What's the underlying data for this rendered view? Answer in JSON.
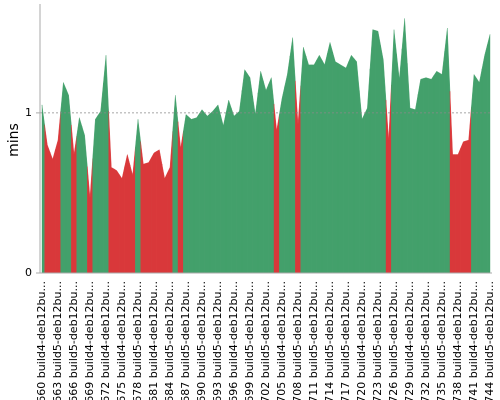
{
  "chart_data": {
    "type": "area",
    "y_label": "mins",
    "ylim": [
      0,
      1.68
    ],
    "yticks": [
      0,
      1
    ],
    "grid": true,
    "categories": [
      "#660 build4-deb12bu...",
      null,
      null,
      "#663 build5-deb12bu...",
      null,
      null,
      "#666 build5-deb12bu...",
      null,
      null,
      "#669 build4-deb12bu...",
      null,
      null,
      "#672 build4-deb12bu...",
      null,
      null,
      "#675 build4-deb12bu...",
      null,
      null,
      "#678 build5-deb12bu...",
      null,
      null,
      "#681 build4-deb12bu...",
      null,
      null,
      "#684 build5-deb12bu...",
      null,
      null,
      "#687 build5-deb12bu...",
      null,
      null,
      "#690 build5-deb12bu...",
      null,
      null,
      "#693 build5-deb12bu...",
      null,
      null,
      "#696 build4-deb12bu...",
      null,
      null,
      "#699 build5-deb12bu...",
      null,
      null,
      "#702 build5-deb12bu...",
      null,
      null,
      "#705 build4-deb12bu...",
      null,
      null,
      "#708 build5-deb12bu...",
      null,
      null,
      "#711 build5-deb12bu...",
      null,
      null,
      "#714 build5-deb12bu...",
      null,
      null,
      "#717 build5-deb12bu...",
      null,
      null,
      "#720 build4-deb12bu...",
      null,
      null,
      "#723 build5-deb12bu...",
      null,
      null,
      "#726 build5-deb12bu...",
      null,
      null,
      "#729 build4-deb12bu...",
      null,
      null,
      "#732 build5-deb12bu...",
      null,
      null,
      "#735 build5-deb12bu...",
      null,
      null,
      "#738 build4-deb12bu...",
      null,
      null,
      "#741 build4-deb12bu...",
      null,
      null,
      "#744 build5-deb12bu..."
    ],
    "values": [
      1.05,
      0.8,
      0.71,
      0.83,
      1.19,
      1.11,
      0.74,
      0.97,
      0.86,
      0.47,
      0.96,
      1.01,
      1.36,
      0.66,
      0.64,
      0.59,
      0.74,
      0.61,
      0.96,
      0.68,
      0.69,
      0.75,
      0.77,
      0.59,
      0.66,
      1.11,
      0.78,
      0.99,
      0.96,
      0.97,
      1.02,
      0.98,
      1.01,
      1.05,
      0.92,
      1.08,
      0.98,
      1.01,
      1.27,
      1.22,
      0.99,
      1.26,
      1.14,
      1.22,
      0.89,
      1.09,
      1.24,
      1.47,
      0.93,
      1.41,
      1.3,
      1.3,
      1.36,
      1.3,
      1.44,
      1.32,
      1.3,
      1.28,
      1.36,
      1.32,
      0.96,
      1.03,
      1.52,
      1.51,
      1.33,
      0.83,
      1.52,
      1.21,
      1.59,
      1.03,
      1.02,
      1.21,
      1.22,
      1.21,
      1.26,
      1.24,
      1.53,
      0.74,
      0.74,
      0.82,
      0.83,
      1.24,
      1.19,
      1.36,
      1.49
    ],
    "colors": [
      "#43a06b",
      "#d9383a",
      "#d9383a",
      "#d9383a",
      "#43a06b",
      "#43a06b",
      "#d9383a",
      "#43a06b",
      "#43a06b",
      "#d9383a",
      "#43a06b",
      "#43a06b",
      "#43a06b",
      "#d9383a",
      "#d9383a",
      "#d9383a",
      "#d9383a",
      "#d9383a",
      "#43a06b",
      "#d9383a",
      "#d9383a",
      "#d9383a",
      "#d9383a",
      "#d9383a",
      "#d9383a",
      "#43a06b",
      "#d9383a",
      "#43a06b",
      "#43a06b",
      "#43a06b",
      "#43a06b",
      "#43a06b",
      "#43a06b",
      "#43a06b",
      "#43a06b",
      "#43a06b",
      "#43a06b",
      "#43a06b",
      "#43a06b",
      "#43a06b",
      "#43a06b",
      "#43a06b",
      "#43a06b",
      "#43a06b",
      "#d9383a",
      "#43a06b",
      "#43a06b",
      "#43a06b",
      "#d9383a",
      "#43a06b",
      "#43a06b",
      "#43a06b",
      "#43a06b",
      "#43a06b",
      "#43a06b",
      "#43a06b",
      "#43a06b",
      "#43a06b",
      "#43a06b",
      "#43a06b",
      "#43a06b",
      "#43a06b",
      "#43a06b",
      "#43a06b",
      "#43a06b",
      "#d9383a",
      "#43a06b",
      "#43a06b",
      "#43a06b",
      "#43a06b",
      "#43a06b",
      "#43a06b",
      "#43a06b",
      "#43a06b",
      "#43a06b",
      "#43a06b",
      "#43a06b",
      "#d9383a",
      "#d9383a",
      "#d9383a",
      "#d9383a",
      "#43a06b",
      "#43a06b",
      "#43a06b",
      "#43a06b"
    ]
  }
}
